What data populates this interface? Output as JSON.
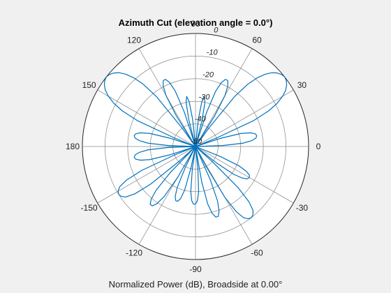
{
  "chart_data": {
    "type": "polar-line",
    "title": "Azimuth Cut (elevation angle = 0.0°)",
    "caption": "Normalized Power (dB), Broadside at 0.00°",
    "angle_unit": "degrees",
    "angle_ticks": [
      0,
      30,
      60,
      90,
      120,
      150,
      180,
      -150,
      -120,
      -90,
      -60,
      -30
    ],
    "r_ticks": [
      0,
      -10,
      -20,
      -30,
      -40,
      -50
    ],
    "r_lim": [
      -50,
      0
    ],
    "r_tick_label_angle_deg": 80,
    "grid": true,
    "line_color": "#0072bd",
    "series": [
      {
        "angles_deg": [
          0,
          2,
          4,
          6,
          8,
          10,
          12,
          14,
          16,
          18,
          20,
          22,
          24,
          26,
          28,
          30,
          32,
          34,
          36,
          38,
          40,
          42,
          44,
          46,
          48,
          50,
          52,
          54,
          56,
          58,
          60,
          62,
          64,
          66,
          68,
          70,
          72,
          74,
          76,
          78,
          80,
          82,
          84,
          86,
          88,
          90,
          92,
          94,
          96,
          98,
          100,
          102,
          104,
          106,
          108,
          110,
          112,
          114,
          116,
          118,
          120,
          122,
          124,
          126,
          128,
          130,
          132,
          134,
          136,
          138,
          140,
          142,
          144,
          146,
          148,
          150,
          152,
          154,
          156,
          158,
          160,
          162,
          164,
          166,
          168,
          170,
          172,
          174,
          176,
          178,
          180,
          182,
          184,
          186,
          188,
          190,
          192,
          194,
          196,
          198,
          200,
          202,
          204,
          206,
          208,
          210,
          212,
          214,
          216,
          218,
          220,
          222,
          224,
          226,
          228,
          230,
          232,
          234,
          236,
          238,
          240,
          242,
          244,
          246,
          248,
          250,
          252,
          254,
          256,
          258,
          260,
          262,
          264,
          266,
          268,
          270,
          272,
          274,
          276,
          278,
          280,
          282,
          284,
          286,
          288,
          290,
          292,
          294,
          296,
          298,
          300,
          302,
          304,
          306,
          308,
          310,
          312,
          314,
          316,
          318,
          320,
          322,
          324,
          326,
          328,
          330,
          332,
          334,
          336,
          338,
          340,
          342,
          344,
          346,
          348,
          350,
          352,
          354,
          356,
          358,
          360
        ],
        "values_db": [
          -50,
          -38,
          -29,
          -25,
          -23,
          -22.5,
          -23,
          -25,
          -29,
          -38,
          -50,
          -40,
          -22,
          -14,
          -9,
          -5.5,
          -3,
          -1.4,
          -0.4,
          0,
          -0.4,
          -1.4,
          -3,
          -5.5,
          -9,
          -14,
          -22,
          -40,
          -50,
          -34,
          -24,
          -19.5,
          -17.5,
          -17.5,
          -19.5,
          -24,
          -34,
          -50,
          -38,
          -30,
          -27.5,
          -30,
          -38,
          -50,
          -50,
          -50,
          -50,
          -50,
          -38,
          -30,
          -27.5,
          -30,
          -38,
          -50,
          -34,
          -24,
          -19.5,
          -17.5,
          -17.5,
          -19.5,
          -24,
          -34,
          -50,
          -40,
          -22,
          -14,
          -9,
          -5.5,
          -3,
          -1.4,
          -0.4,
          0,
          -0.4,
          -1.4,
          -3,
          -5.5,
          -9,
          -14,
          -22,
          -40,
          -50,
          -38,
          -29,
          -25,
          -23,
          -22.5,
          -23,
          -25,
          -29,
          -38,
          -50,
          -38,
          -29,
          -25,
          -23,
          -22.5,
          -23,
          -25,
          -29,
          -38,
          -50,
          -40,
          -24,
          -16,
          -12,
          -10.5,
          -10,
          -10.5,
          -12,
          -16,
          -24,
          -40,
          -50,
          -34,
          -24,
          -19.5,
          -17.5,
          -17.5,
          -19.5,
          -24,
          -34,
          -50,
          -40,
          -30,
          -26,
          -24.5,
          -24.5,
          -26,
          -30,
          -40,
          -50,
          -40,
          -30,
          -26,
          -24.5,
          -24.5,
          -26,
          -30,
          -40,
          -50,
          -34,
          -24,
          -19.5,
          -17.5,
          -17.5,
          -19.5,
          -24,
          -34,
          -50,
          -40,
          -24,
          -16,
          -12,
          -10.5,
          -10,
          -10.5,
          -12,
          -16,
          -24,
          -40,
          -50,
          -38,
          -29,
          -25,
          -23,
          -22.5,
          -23,
          -25,
          -29,
          -38,
          -50
        ]
      }
    ]
  }
}
